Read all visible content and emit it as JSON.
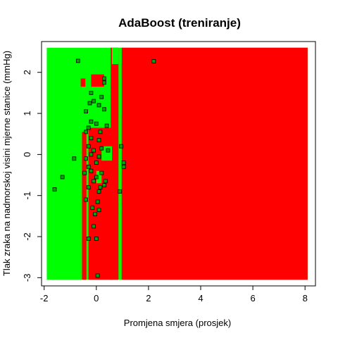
{
  "chart_data": {
    "type": "scatter",
    "title": "AdaBoost (treniranje)",
    "xlabel": "Promjena smjera (prosjek)",
    "ylabel": "Tlak zraka na nadmorskoj visini mjerne stanice (mmHg)",
    "xlim": [
      -2.1,
      8.4
    ],
    "ylim": [
      -3.2,
      2.75
    ],
    "x_ticks": [
      -2,
      0,
      2,
      4,
      6,
      8
    ],
    "y_ticks": [
      -3,
      -2,
      -1,
      0,
      1,
      2
    ],
    "grid": false,
    "legend": "none",
    "colors": {
      "background": "#00ff00",
      "region": "#ff0000",
      "points": "#00aa00",
      "point_border": "#000000"
    },
    "decision_region": {
      "x_range": [
        -1.9,
        8.1
      ],
      "y_range": [
        -3.05,
        2.6
      ],
      "red_regions": [
        {
          "x": [
            -0.55,
            -0.38
          ],
          "y": [
            -3.05,
            0.55
          ]
        },
        {
          "x": [
            -0.3,
            0.6
          ],
          "y": [
            -3.05,
            0.65
          ]
        },
        {
          "x": [
            -0.2,
            0.3
          ],
          "y": [
            1.65,
            1.95
          ]
        },
        {
          "x": [
            0.55,
            0.85
          ],
          "y": [
            -3.05,
            2.6
          ]
        },
        {
          "x": [
            0.97,
            8.1
          ],
          "y": [
            -3.05,
            2.6
          ]
        },
        {
          "x": [
            -0.6,
            -0.42
          ],
          "y": [
            1.65,
            1.85
          ]
        }
      ],
      "green_regions": [
        {
          "x": [
            0.88,
            0.97
          ],
          "y": [
            2.2,
            2.6
          ]
        },
        {
          "x": [
            0.88,
            0.97
          ],
          "y": [
            0.95,
            1.85
          ]
        },
        {
          "x": [
            0.88,
            0.97
          ],
          "y": [
            -0.45,
            0.25
          ]
        },
        {
          "x": [
            0.88,
            0.97
          ],
          "y": [
            -1.35,
            -1.25
          ]
        },
        {
          "x": [
            0.2,
            0.6
          ],
          "y": [
            -0.15,
            0.2
          ]
        },
        {
          "x": [
            0.0,
            0.2
          ],
          "y": [
            -0.7,
            -0.4
          ]
        },
        {
          "x": [
            0.6,
            0.85
          ],
          "y": [
            2.2,
            2.6
          ]
        }
      ]
    },
    "points": [
      {
        "x": -0.7,
        "y": 2.28
      },
      {
        "x": 2.2,
        "y": 2.27
      },
      {
        "x": 0.3,
        "y": 1.85
      },
      {
        "x": 0.3,
        "y": 1.75
      },
      {
        "x": -0.2,
        "y": 1.5
      },
      {
        "x": 0.2,
        "y": 1.4
      },
      {
        "x": -0.1,
        "y": 1.3
      },
      {
        "x": 0.1,
        "y": 1.2
      },
      {
        "x": 0.3,
        "y": 1.1
      },
      {
        "x": -0.4,
        "y": 1.05
      },
      {
        "x": -0.2,
        "y": 0.8
      },
      {
        "x": 0.0,
        "y": 0.75
      },
      {
        "x": -0.3,
        "y": 0.65
      },
      {
        "x": 0.4,
        "y": 0.7
      },
      {
        "x": -0.4,
        "y": 0.55
      },
      {
        "x": -0.2,
        "y": 0.4
      },
      {
        "x": 0.1,
        "y": 0.35
      },
      {
        "x": -0.3,
        "y": 0.2
      },
      {
        "x": 0.2,
        "y": 0.15
      },
      {
        "x": -0.1,
        "y": 0.1
      },
      {
        "x": -0.2,
        "y": 0.0
      },
      {
        "x": 0.1,
        "y": -0.05
      },
      {
        "x": -0.4,
        "y": -0.1
      },
      {
        "x": -0.85,
        "y": -0.1
      },
      {
        "x": 0.0,
        "y": -0.2
      },
      {
        "x": -0.3,
        "y": -0.3
      },
      {
        "x": -0.2,
        "y": -0.4
      },
      {
        "x": 0.2,
        "y": -0.45
      },
      {
        "x": -0.45,
        "y": -0.45
      },
      {
        "x": 0.0,
        "y": -0.55
      },
      {
        "x": 0.35,
        "y": -0.65
      },
      {
        "x": 0.3,
        "y": -0.75
      },
      {
        "x": -0.3,
        "y": -0.8
      },
      {
        "x": 0.1,
        "y": -0.9
      },
      {
        "x": 0.9,
        "y": -0.9
      },
      {
        "x": 1.05,
        "y": -0.3
      },
      {
        "x": 0.95,
        "y": 0.2
      },
      {
        "x": 1.05,
        "y": -0.2
      },
      {
        "x": -1.3,
        "y": -0.55
      },
      {
        "x": -1.6,
        "y": -0.85
      },
      {
        "x": -0.4,
        "y": -1.1
      },
      {
        "x": 0.05,
        "y": -1.15
      },
      {
        "x": -0.15,
        "y": -1.3
      },
      {
        "x": 0.1,
        "y": -1.35
      },
      {
        "x": -0.05,
        "y": -1.45
      },
      {
        "x": -0.1,
        "y": -1.75
      },
      {
        "x": -0.3,
        "y": -2.05
      },
      {
        "x": 0.0,
        "y": -2.05
      },
      {
        "x": 0.05,
        "y": -2.95
      },
      {
        "x": 0.15,
        "y": 0.55
      },
      {
        "x": 0.45,
        "y": 0.1
      },
      {
        "x": -0.1,
        "y": -0.65
      },
      {
        "x": 0.15,
        "y": -0.8
      },
      {
        "x": -0.25,
        "y": 1.25
      }
    ]
  }
}
